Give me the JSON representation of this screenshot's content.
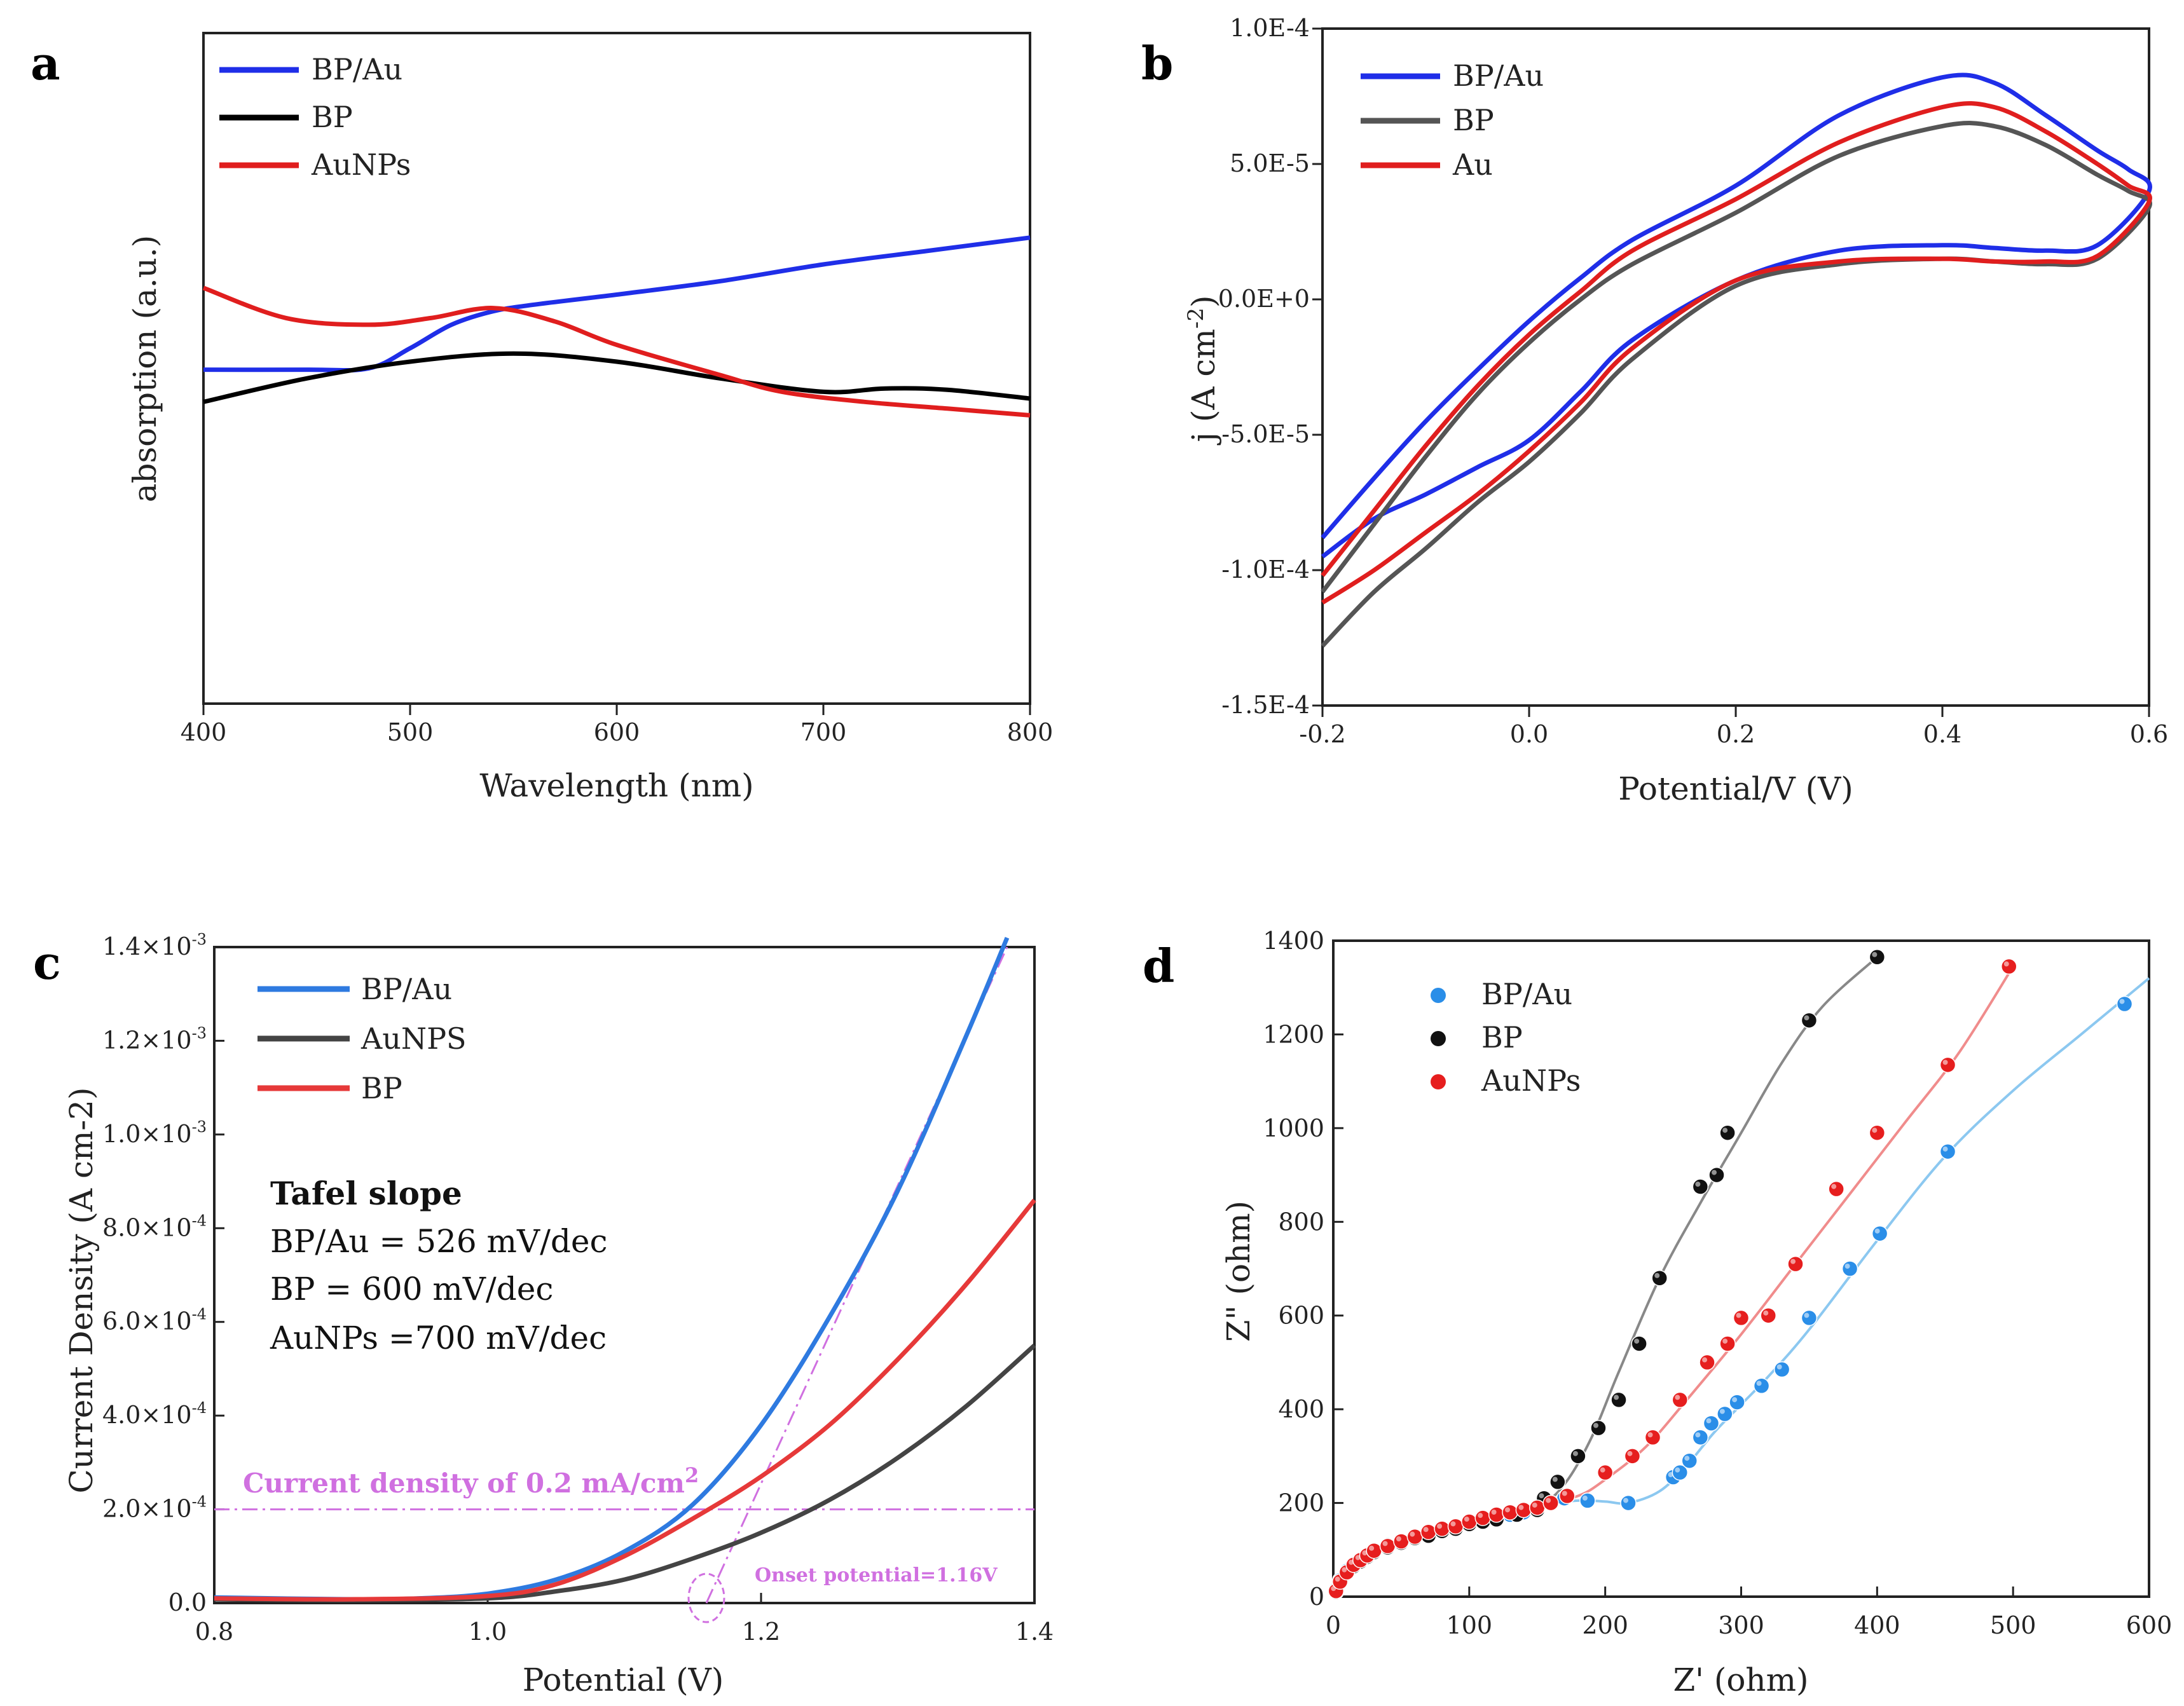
{
  "panels": {
    "a": {
      "letter": "a",
      "chart_data": {
        "type": "line",
        "xlabel": "Wavelength (nm)",
        "ylabel": "absorption (a.u.)",
        "xlim": [
          400,
          800
        ],
        "ylim": [
          0,
          1
        ],
        "xticks": [
          "400",
          "500",
          "600",
          "700",
          "800"
        ],
        "series": [
          {
            "name": "BP/Au",
            "color": "#1f2ee8",
            "x": [
              400,
              450,
              480,
              500,
              520,
              540,
              560,
              600,
              650,
              700,
              750,
              800
            ],
            "y": [
              0.498,
              0.498,
              0.5,
              0.53,
              0.565,
              0.585,
              0.595,
              0.61,
              0.63,
              0.655,
              0.675,
              0.695
            ]
          },
          {
            "name": "BP",
            "color": "#000000",
            "x": [
              400,
              450,
              500,
              550,
              600,
              650,
              700,
              730,
              760,
              800
            ],
            "y": [
              0.45,
              0.485,
              0.51,
              0.522,
              0.51,
              0.485,
              0.465,
              0.47,
              0.468,
              0.455
            ]
          },
          {
            "name": "AuNPs",
            "color": "#e01e1e",
            "x": [
              400,
              440,
              480,
              510,
              540,
              570,
              600,
              650,
              680,
              720,
              760,
              800
            ],
            "y": [
              0.62,
              0.575,
              0.565,
              0.575,
              0.59,
              0.57,
              0.535,
              0.49,
              0.465,
              0.45,
              0.44,
              0.43
            ]
          }
        ]
      }
    },
    "b": {
      "letter": "b",
      "chart_data": {
        "type": "line",
        "xlabel": "Potential/V (V)",
        "ylabel": "j (A cm-2)",
        "ylabel_main": "j (A cm",
        "ylabel_sup": "-2",
        "ylabel_close": ")",
        "xlim": [
          -0.2,
          0.6
        ],
        "ylim": [
          -0.00015,
          0.0001
        ],
        "xticks": [
          "-0.2",
          "0.0",
          "0.2",
          "0.4",
          "0.6"
        ],
        "yticks": [
          "1.0E-4",
          "5.0E-5",
          "0.0E+0",
          "-5.0E-5",
          "-1.0E-4",
          "-1.5E-4"
        ],
        "series": [
          {
            "name": "BP/Au",
            "color": "#1f2ee8",
            "x": [
              -0.2,
              -0.15,
              -0.1,
              -0.05,
              0.0,
              0.05,
              0.1,
              0.2,
              0.3,
              0.4,
              0.45,
              0.5,
              0.55,
              0.6,
              0.58,
              0.55,
              0.5,
              0.45,
              0.4,
              0.3,
              0.2,
              0.1,
              0.05,
              0.0,
              -0.05,
              -0.1,
              -0.15,
              -0.2
            ],
            "y": [
              -9.5e-05,
              -8.1e-05,
              -7.2e-05,
              -6.2e-05,
              -5.2e-05,
              -3.4e-05,
              -1.5e-05,
              7e-06,
              1.8e-05,
              2e-05,
              1.9e-05,
              1.8e-05,
              2e-05,
              4e-05,
              4.8e-05,
              5.5e-05,
              6.8e-05,
              8e-05,
              8.2e-05,
              6.8e-05,
              4.2e-05,
              2.2e-05,
              8e-06,
              -8e-06,
              -2.6e-05,
              -4.5e-05,
              -6.6e-05,
              -8.8e-05
            ]
          },
          {
            "name": "BP",
            "color": "#555555",
            "x": [
              -0.2,
              -0.15,
              -0.1,
              -0.05,
              0.0,
              0.05,
              0.1,
              0.2,
              0.3,
              0.4,
              0.45,
              0.5,
              0.55,
              0.6,
              0.58,
              0.55,
              0.5,
              0.45,
              0.4,
              0.3,
              0.2,
              0.1,
              0.05,
              0.0,
              -0.05,
              -0.1,
              -0.15,
              -0.2
            ],
            "y": [
              -0.000128,
              -0.000108,
              -9.2e-05,
              -7.5e-05,
              -6e-05,
              -4.2e-05,
              -2.2e-05,
              5e-06,
              1.3e-05,
              1.5e-05,
              1.4e-05,
              1.3e-05,
              1.5e-05,
              3.4e-05,
              4e-05,
              4.6e-05,
              5.7e-05,
              6.4e-05,
              6.4e-05,
              5.3e-05,
              3.2e-05,
              1.3e-05,
              0.0,
              -1.6e-05,
              -3.5e-05,
              -5.8e-05,
              -8.3e-05,
              -0.000108
            ]
          },
          {
            "name": "Au",
            "color": "#e01e1e",
            "x": [
              -0.2,
              -0.15,
              -0.1,
              -0.05,
              0.0,
              0.05,
              0.1,
              0.2,
              0.3,
              0.4,
              0.45,
              0.5,
              0.55,
              0.6,
              0.58,
              0.55,
              0.5,
              0.45,
              0.4,
              0.3,
              0.2,
              0.1,
              0.05,
              0.0,
              -0.05,
              -0.1,
              -0.15,
              -0.2
            ],
            "y": [
              -0.000112,
              -0.0001,
              -8.6e-05,
              -7.2e-05,
              -5.6e-05,
              -3.8e-05,
              -1.8e-05,
              7e-06,
              1.4e-05,
              1.5e-05,
              1.4e-05,
              1.4e-05,
              1.6e-05,
              3.6e-05,
              4.2e-05,
              5e-05,
              6.2e-05,
              7.1e-05,
              7.1e-05,
              5.8e-05,
              3.7e-05,
              1.8e-05,
              3e-06,
              -1.3e-05,
              -3.2e-05,
              -5.4e-05,
              -7.8e-05,
              -0.000102
            ]
          }
        ]
      }
    },
    "c": {
      "letter": "c",
      "chart_data": {
        "type": "line",
        "xlabel": "Potential (V)",
        "ylabel": "Current Density (A cm-2)",
        "xlim": [
          0.8,
          1.4
        ],
        "ylim": [
          0,
          0.0014
        ],
        "xticks": [
          "0.8",
          "1.0",
          "1.2",
          "1.4"
        ],
        "yticks": [
          {
            "mant": "0.0",
            "exp": ""
          },
          {
            "mant": "2.0×10",
            "exp": "-4"
          },
          {
            "mant": "4.0×10",
            "exp": "-4"
          },
          {
            "mant": "6.0×10",
            "exp": "-4"
          },
          {
            "mant": "8.0×10",
            "exp": "-4"
          },
          {
            "mant": "1.0×10",
            "exp": "-3"
          },
          {
            "mant": "1.2×10",
            "exp": "-3"
          },
          {
            "mant": "1.4×10",
            "exp": "-3"
          }
        ],
        "series": [
          {
            "name": "BP/Au",
            "color": "#2e7ae0",
            "x": [
              0.8,
              0.9,
              0.95,
              1.0,
              1.05,
              1.1,
              1.15,
              1.2,
              1.25,
              1.3,
              1.35,
              1.38
            ],
            "y": [
              1.2e-05,
              8e-06,
              1e-05,
              2e-05,
              5e-05,
              0.00011,
              0.00021,
              0.00038,
              0.00061,
              0.00088,
              0.00121,
              0.00142
            ]
          },
          {
            "name": "AuNPS",
            "color": "#444444",
            "x": [
              0.8,
              0.9,
              1.0,
              1.05,
              1.1,
              1.15,
              1.2,
              1.25,
              1.3,
              1.35,
              1.4
            ],
            "y": [
              8e-06,
              6e-06,
              1e-05,
              2.5e-05,
              5e-05,
              9.5e-05,
              0.00015,
              0.00022,
              0.00031,
              0.00042,
              0.00055
            ]
          },
          {
            "name": "BP",
            "color": "#e63939",
            "x": [
              0.8,
              0.9,
              1.0,
              1.05,
              1.1,
              1.15,
              1.2,
              1.25,
              1.3,
              1.35,
              1.4
            ],
            "y": [
              1e-05,
              8e-06,
              1.5e-05,
              4e-05,
              0.0001,
              0.00018,
              0.00027,
              0.00038,
              0.00052,
              0.00068,
              0.00086
            ]
          }
        ],
        "guides": {
          "horizontal_y": 0.0002,
          "tangent": {
            "x": [
              1.16,
              1.38
            ],
            "y": [
              0.0,
              0.0014
            ]
          },
          "onset_circle": {
            "x": 1.16,
            "y": 0.0
          }
        },
        "annotations": {
          "tafel_title": "Tafel slope",
          "tafel_lines": [
            "BP/Au = 526 mV/dec",
            "BP = 600 mV/dec",
            "AuNPs =700 mV/dec"
          ],
          "current_density_main": "Current density of 0.2 mA/cm",
          "current_density_sup": "2",
          "onset": "Onset potential=1.16V"
        }
      }
    },
    "d": {
      "letter": "d",
      "chart_data": {
        "type": "scatter",
        "xlabel": "Z' (ohm)",
        "ylabel": "Z\" (ohm)",
        "xlim": [
          0,
          600
        ],
        "ylim": [
          0,
          1400
        ],
        "xticks": [
          "0",
          "100",
          "200",
          "300",
          "400",
          "500",
          "600"
        ],
        "yticks": [
          "0",
          "200",
          "400",
          "600",
          "800",
          "1000",
          "1200",
          "1400"
        ],
        "series": [
          {
            "name": "BP/Au",
            "color": "#2a8ee8",
            "line_color": "#8cc8f0",
            "x": [
              2,
              5,
              10,
              15,
              20,
              25,
              30,
              40,
              50,
              60,
              70,
              80,
              90,
              100,
              110,
              120,
              130,
              140,
              150,
              160,
              170,
              187,
              217,
              250,
              255,
              262,
              270,
              278,
              288,
              297,
              315,
              330,
              350,
              380,
              402,
              452,
              582
            ],
            "y": [
              15,
              35,
              55,
              70,
              80,
              90,
              100,
              110,
              115,
              125,
              135,
              140,
              150,
              155,
              160,
              165,
              175,
              180,
              190,
              200,
              210,
              205,
              200,
              255,
              265,
              290,
              340,
              370,
              390,
              415,
              450,
              485,
              595,
              700,
              775,
              950,
              1265
            ],
            "fit_x": [
              0,
              20,
              50,
              100,
              150,
              180,
              200,
              217,
              240,
              260,
              280,
              300,
              320,
              350,
              400,
              450,
              500,
              550,
              600
            ],
            "fit_y": [
              0,
              80,
              115,
              160,
              195,
              205,
              203,
              200,
              225,
              280,
              350,
              410,
              470,
              570,
              760,
              940,
              1080,
              1200,
              1320
            ]
          },
          {
            "name": "BP",
            "color": "#111111",
            "line_color": "#888888",
            "x": [
              2,
              5,
              10,
              15,
              20,
              25,
              30,
              40,
              50,
              60,
              70,
              80,
              90,
              100,
              110,
              120,
              130,
              140,
              150,
              160,
              170,
              180,
              190,
              200,
              210,
              225,
              240,
              255,
              270,
              282,
              290,
              300,
              345,
              400
            ],
            "y": [
              10,
              30,
              50,
              65,
              75,
              85,
              95,
              105,
              115,
              125,
              130,
              140,
              145,
              155,
              160,
              165,
              175,
              180,
              190,
              210,
              240,
              300,
              360,
              430,
              540,
              680,
              780,
              870,
              900,
              990,
              1120,
              1230,
              1230,
              1365
            ],
            "fit_x": [
              0,
              20,
              50,
              100,
              150,
              170,
              190,
              210,
              240,
              270,
              300,
              330,
              360,
              400
            ],
            "fit_y": [
              0,
              75,
              115,
              155,
              195,
              240,
              340,
              480,
              680,
              840,
              990,
              1140,
              1260,
              1365
            ],
            "scatter_x": [
              2,
              5,
              10,
              15,
              20,
              25,
              30,
              40,
              50,
              60,
              70,
              80,
              90,
              100,
              110,
              120,
              135,
              150,
              155,
              165,
              180,
              195,
              210,
              225,
              240,
              270,
              282,
              290,
              350,
              400
            ],
            "scatter_y": [
              10,
              30,
              50,
              65,
              75,
              85,
              95,
              105,
              115,
              125,
              130,
              140,
              145,
              155,
              160,
              165,
              175,
              185,
              210,
              245,
              300,
              360,
              420,
              540,
              680,
              875,
              900,
              990,
              1230,
              1365
            ]
          },
          {
            "name": "AuNPs",
            "color": "#e61e1e",
            "line_color": "#f08c8c",
            "x": [
              2,
              5,
              10,
              15,
              20,
              25,
              30,
              40,
              50,
              60,
              70,
              80,
              90,
              100,
              110,
              120,
              130,
              140,
              150,
              160,
              172,
              200,
              220,
              235,
              255,
              275,
              290,
              300,
              320,
              340,
              370,
              400,
              452,
              497
            ],
            "y": [
              12,
              32,
              52,
              68,
              78,
              88,
              98,
              108,
              118,
              128,
              138,
              145,
              150,
              160,
              168,
              175,
              180,
              185,
              190,
              200,
              215,
              265,
              300,
              340,
              420,
              500,
              540,
              595,
              600,
              710,
              870,
              990,
              1135,
              1345
            ],
            "fit_x": [
              0,
              20,
              50,
              100,
              150,
              180,
              200,
              230,
              260,
              300,
              340,
              380,
              420,
              460,
              500
            ],
            "fit_y": [
              0,
              80,
              115,
              165,
              195,
              215,
              250,
              320,
              420,
              560,
              710,
              860,
              1010,
              1160,
              1345
            ]
          }
        ]
      }
    }
  }
}
